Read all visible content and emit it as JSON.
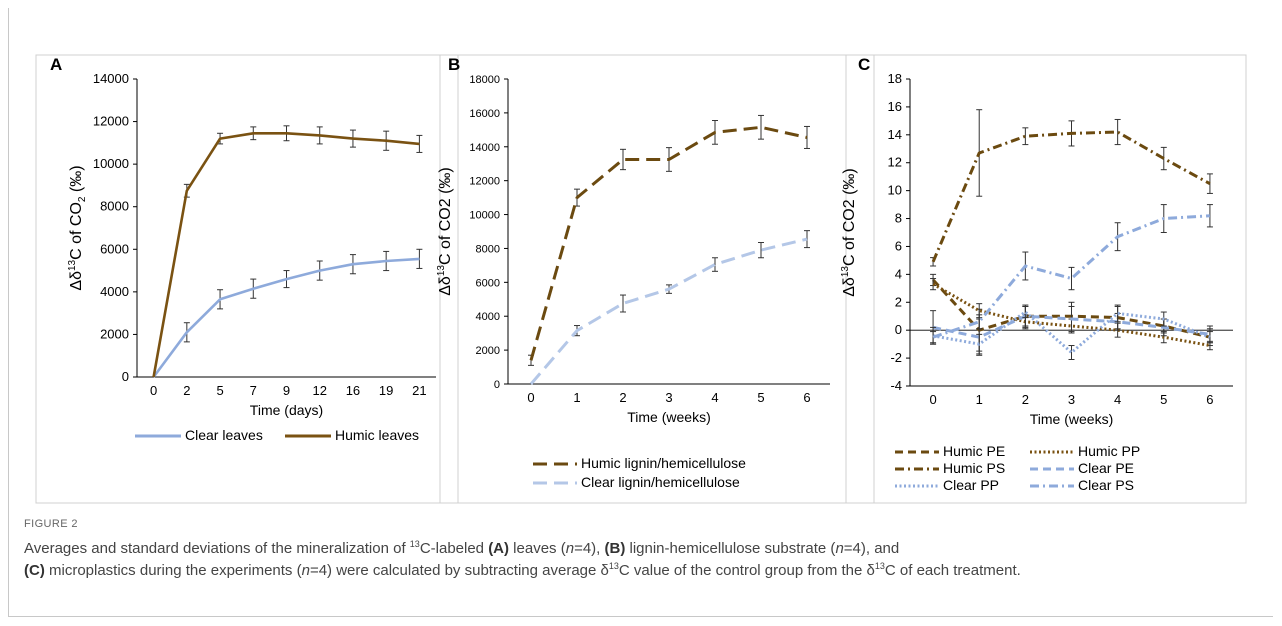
{
  "figure_label": "FIGURE 2",
  "caption": {
    "p1": "Averages and standard deviations of the mineralization of ",
    "sup13a": "13",
    "p2": "C-labeled ",
    "boldA": "(A)",
    "p3": " leaves (",
    "n1": "n",
    "p4": "=4), ",
    "boldB": "(B)",
    "p5": " lignin-hemicellulose substrate (",
    "n2": "n",
    "p6": "=4), and",
    "boldC": "(C)",
    "p7": " microplastics during the experiments (",
    "n3": "n",
    "p8": "=4) were calculated by subtracting average δ",
    "sup13b": "13",
    "p9": "C value of the control group from the δ",
    "sup13c": "13",
    "p10": "C of each treatment."
  },
  "colors": {
    "humic": "#7a5212",
    "humic_b": "#6b4a10",
    "clear": "#8eaadb",
    "clear_b": "#b4c7e7",
    "humic_pe": "#6b4a10",
    "humic_pp": "#7a5212",
    "humic_ps": "#6b4a10",
    "clear_pe": "#8eaadb",
    "clear_pp": "#8eaadb",
    "clear_ps": "#8eaadb"
  },
  "chart_data": [
    {
      "panel": "A",
      "type": "line",
      "ylabel_parts": [
        "Δδ",
        "13",
        "C of CO",
        "2",
        " (‰)"
      ],
      "xlabel": "Time (days)",
      "categories": [
        "0",
        "2",
        "5",
        "7",
        "9",
        "12",
        "16",
        "19",
        "21"
      ],
      "ylim": [
        0,
        14000
      ],
      "yticks": [
        0,
        2000,
        4000,
        6000,
        8000,
        10000,
        12000,
        14000
      ],
      "legend_placement": "bottom",
      "series": [
        {
          "name": "Clear leaves",
          "color_key": "clear",
          "dash": "",
          "values": [
            0,
            2100,
            3650,
            4150,
            4600,
            5000,
            5300,
            5450,
            5550
          ],
          "errors": [
            0,
            450,
            450,
            450,
            400,
            450,
            450,
            450,
            450
          ]
        },
        {
          "name": "Humic leaves",
          "color_key": "humic",
          "dash": "",
          "values": [
            0,
            8750,
            11200,
            11450,
            11450,
            11350,
            11200,
            11100,
            10950
          ],
          "errors": [
            0,
            300,
            250,
            300,
            350,
            400,
            400,
            450,
            400
          ]
        }
      ]
    },
    {
      "panel": "B",
      "type": "line",
      "ylabel_parts": [
        "Δδ",
        "13",
        "C of CO2 (‰)",
        "",
        ""
      ],
      "xlabel": "Time (weeks)",
      "categories": [
        "0",
        "1",
        "2",
        "3",
        "4",
        "5",
        "6"
      ],
      "ylim": [
        0,
        18000
      ],
      "yticks": [
        0,
        2000,
        4000,
        6000,
        8000,
        10000,
        12000,
        14000,
        16000,
        18000
      ],
      "legend_placement": "bottom",
      "series": [
        {
          "name": "Humic lignin/hemicellulose",
          "color_key": "humic_b",
          "dash": "14 7",
          "values": [
            1400,
            11000,
            13250,
            13250,
            14850,
            15150,
            14550
          ],
          "errors": [
            300,
            500,
            600,
            700,
            700,
            700,
            650
          ]
        },
        {
          "name": "Clear lignin/hemicellulose",
          "color_key": "clear_b",
          "dash": "14 7",
          "values": [
            0,
            3150,
            4750,
            5600,
            7050,
            7900,
            8550
          ],
          "errors": [
            0,
            300,
            500,
            250,
            400,
            450,
            500
          ]
        }
      ]
    },
    {
      "panel": "C",
      "type": "line",
      "ylabel_parts": [
        "Δδ",
        "13",
        "C of CO2 (‰)",
        "",
        ""
      ],
      "xlabel": "Time (weeks)",
      "categories": [
        "0",
        "1",
        "2",
        "3",
        "4",
        "5",
        "6"
      ],
      "ylim": [
        -4,
        18
      ],
      "yticks": [
        -4,
        -2,
        0,
        2,
        4,
        6,
        8,
        10,
        12,
        14,
        16,
        18
      ],
      "legend_placement": "bottom",
      "series": [
        {
          "name": "Humic PE",
          "color_key": "humic_pe",
          "dash": "8 5",
          "values": [
            3.6,
            0.0,
            1.0,
            1.0,
            0.9,
            0.3,
            -0.5
          ],
          "errors": [
            0.4,
            1.5,
            0.7,
            1.0,
            0.8,
            0.5,
            0.6
          ]
        },
        {
          "name": "Humic PP",
          "color_key": "humic_pp",
          "dash": "2 2.5",
          "values": [
            3.3,
            1.4,
            0.6,
            0.3,
            0.0,
            -0.5,
            -1.1
          ],
          "errors": [
            0.4,
            0.5,
            0.5,
            0.5,
            0.5,
            0.4,
            0.3
          ]
        },
        {
          "name": "Humic PS",
          "color_key": "humic_ps",
          "dash": "9 4 2 4",
          "values": [
            4.9,
            12.7,
            13.9,
            14.1,
            14.2,
            12.3,
            10.5
          ],
          "errors": [
            0.3,
            3.1,
            0.6,
            0.9,
            0.9,
            0.8,
            0.7
          ]
        },
        {
          "name": "Clear PE",
          "color_key": "clear_pe",
          "dash": "8 5",
          "values": [
            0.2,
            -0.5,
            1.0,
            0.8,
            0.6,
            0.2,
            -0.3
          ],
          "errors": [
            1.2,
            1.3,
            0.8,
            0.9,
            0.6,
            0.6,
            0.6
          ]
        },
        {
          "name": "Clear PP",
          "color_key": "clear_pp",
          "dash": "2 2.5",
          "values": [
            -0.4,
            -1.0,
            1.3,
            -1.6,
            1.2,
            0.8,
            -0.5
          ],
          "errors": [
            0.6,
            0.7,
            0.4,
            0.5,
            0.6,
            0.5,
            0.4
          ]
        },
        {
          "name": "Clear PS",
          "color_key": "clear_ps",
          "dash": "9 4 2 4",
          "values": [
            -0.5,
            0.6,
            4.6,
            3.7,
            6.7,
            8.0,
            8.2
          ],
          "errors": [
            0.4,
            0.5,
            1.0,
            0.8,
            1.0,
            1.0,
            0.8
          ]
        }
      ]
    }
  ]
}
